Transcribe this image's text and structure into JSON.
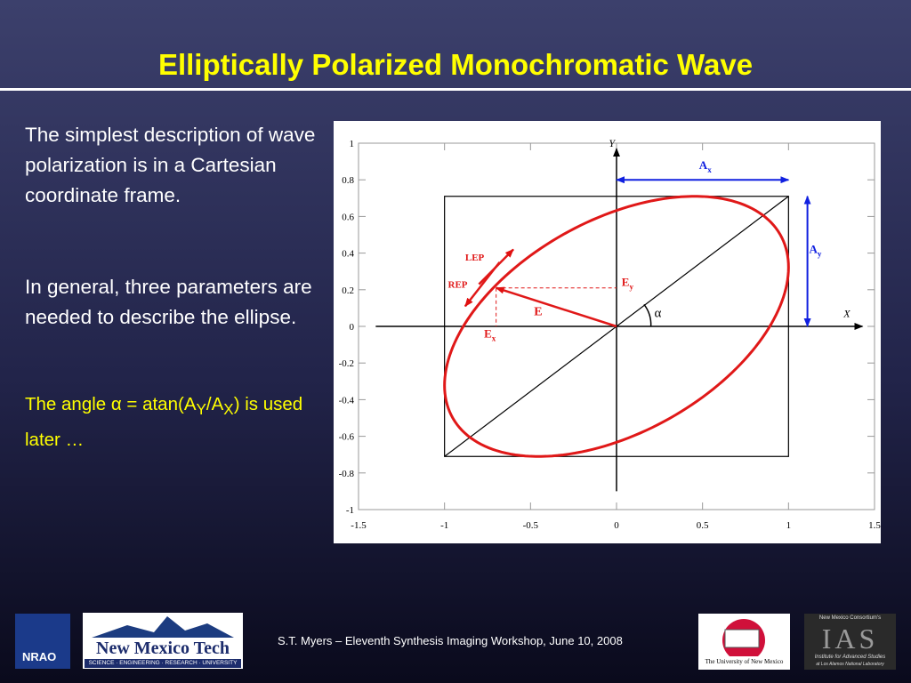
{
  "header": {
    "title": "Elliptically Polarized Monochromatic Wave"
  },
  "body": {
    "paragraphs": [
      "The simplest description of wave polarization is in a Cartesian coordinate frame.",
      "In general, three parameters are needed to describe  the ellipse."
    ],
    "note": [
      "The angle ",
      "α = atan(A",
      "Y",
      "/A",
      "X",
      ") is used later …"
    ]
  },
  "figure": {
    "xlim": [
      -1.5,
      1.5
    ],
    "ylim": [
      -1,
      1
    ],
    "xticks": [
      -1.5,
      -1,
      -0.5,
      0,
      0.5,
      1,
      1.5
    ],
    "yticks": [
      -1,
      -0.8,
      -0.6,
      -0.4,
      -0.2,
      0,
      0.2,
      0.4,
      0.6,
      0.8,
      1
    ],
    "x_label": "X",
    "y_label": "Y",
    "ellipse": {
      "ax": 1,
      "ay": 0.71,
      "phase_deg": 63
    },
    "e_point": {
      "x": -0.7,
      "y": 0.21
    },
    "labels": {
      "ax": [
        "A",
        "x"
      ],
      "ay": [
        "A",
        "y"
      ],
      "ex": [
        "E",
        "x"
      ],
      "ey": [
        "E",
        "y"
      ],
      "e": "E",
      "lep": "LEP",
      "rep": "REP",
      "alpha": "α"
    }
  },
  "footer": {
    "text": "S.T. Myers – Eleventh Synthesis Imaging Workshop, June 10, 2008",
    "logos": {
      "nmt": "New Mexico Tech",
      "nmt_sub": "SCIENCE · ENGINEERING · RESEARCH · UNIVERSITY",
      "unm": "The University of New Mexico",
      "nmc": "New Mexico Consortium's",
      "ias": "IAS",
      "ias_sub": "Institute for Advanced Studies",
      "ias_sub2": "at Los Alamos National Laboratory",
      "nrao": "NRAO"
    }
  }
}
